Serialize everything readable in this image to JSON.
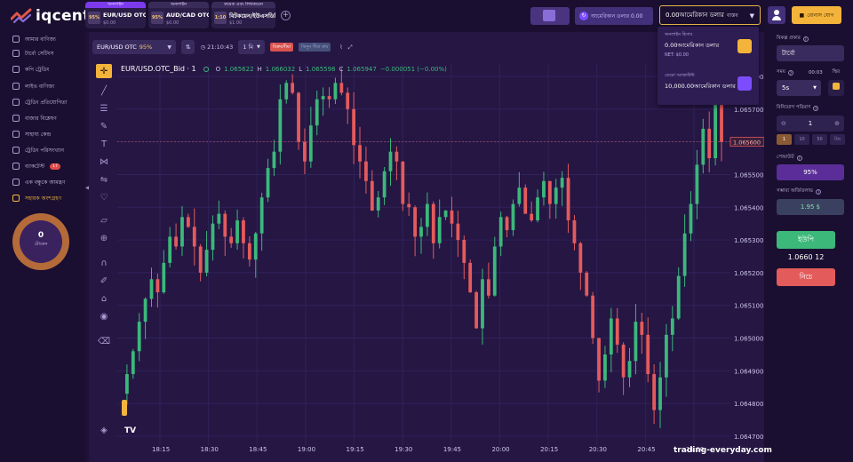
{
  "brand": {
    "name": "iqcent"
  },
  "asset_tabs": [
    {
      "header": "অনলাইন",
      "pct": "95%",
      "name": "EUR/USD OTC",
      "balance": "$0.00",
      "active": true
    },
    {
      "header": "অনলাইন",
      "pct": "95%",
      "name": "AUD/CAD OTC",
      "balance": "$0.00",
      "active": false
    },
    {
      "header": "কয়েক এবং লিথকয়েন",
      "pct": "1:10",
      "name": "বিটকয়েন/ইউএসডিটি",
      "balance": "$1.00",
      "active": false
    }
  ],
  "header": {
    "demo_label": "আমেরিকান ডলার 0.00",
    "balance_select": "0.00আমেরিকান ডলার",
    "balance_select_suffix": "বাস্তব",
    "bonus_label": "বোনাস যোগ"
  },
  "balance_dropdown": {
    "live_label": "অনলাইন হিসাব",
    "live_amount": "0.00আমেরিকান ডলার",
    "live_net": "NET: $0.00",
    "demo_label": "ডেমো অ্যাকাউন্ট",
    "demo_amount": "10,000.00আমেরিকান ডলার",
    "colors": {
      "live_icon": "#f4b43c",
      "demo_icon": "#7c4dff"
    }
  },
  "sidebar": {
    "items": [
      {
        "label": "আমার বাণিজ্য",
        "icon": "briefcase-icon"
      },
      {
        "label": "টার্বো সেটিংস",
        "icon": "rocket-icon"
      },
      {
        "label": "কপি ট্রেডিং",
        "icon": "copy-icon"
      },
      {
        "label": "লাইভ বাণিজ্য",
        "icon": "pulse-icon"
      },
      {
        "label": "ট্রেডিং প্রতিযোগিতা",
        "icon": "trophy-icon"
      },
      {
        "label": "বাজার বিশ্লেষণ",
        "icon": "chart-icon"
      },
      {
        "label": "সাহায্য কেন্দ্র",
        "icon": "help-icon"
      },
      {
        "label": "ট্রেডিং পরিসংখ্যান",
        "icon": "stats-icon"
      },
      {
        "label": "ব্যাকটেস্ট",
        "icon": "history-icon",
        "badge": "17"
      },
      {
        "label": "এক বন্ধুকে আমন্ত্রণ",
        "icon": "invite-icon"
      },
      {
        "label": "সহায়ক অংশগ্রহণ",
        "icon": "partner-icon",
        "highlight": true
      }
    ],
    "ring_value": "0",
    "ring_label": "টোকেন"
  },
  "chart_toolbar": {
    "asset": "EUR/USD OTC",
    "asset_pct": "95%",
    "time": "21:10:43",
    "timeframe": "1 মি",
    "pill_red": "বিক্রয়সীমা",
    "pill_dim": "কিনুন সীমা ক্রয়"
  },
  "ohlc": {
    "symbol": "EUR/USD.OTC_Bid · 1",
    "o_label": "O",
    "o": "1.065622",
    "h_label": "H",
    "h": "1.066032",
    "l_label": "L",
    "l": "1.065598",
    "c_label": "C",
    "c": "1.065947",
    "change": "−0.000051 (−0.00%)"
  },
  "chart_data": {
    "type": "candlestick",
    "x_ticks": [
      "18:15",
      "18:30",
      "18:45",
      "19:00",
      "19:15",
      "19:30",
      "19:45",
      "20:00",
      "20:15",
      "20:30",
      "20:45",
      "21:00"
    ],
    "y_ticks": [
      "1.065800",
      "1.065700",
      "1.065600",
      "1.065500",
      "1.065400",
      "1.065300",
      "1.065200",
      "1.065100",
      "1.065000",
      "1.064900",
      "1.064800",
      "1.064700"
    ],
    "ylim": [
      1.0647,
      1.0658
    ],
    "current_price_tag": "1.065600",
    "colors": {
      "up": "#3cb87a",
      "down": "#e45b5b",
      "grid": "#30225a",
      "bg": "#251644"
    },
    "close_path": [
      1.06483,
      1.06489,
      1.06496,
      1.06505,
      1.06512,
      1.06518,
      1.06514,
      1.06523,
      1.06531,
      1.06528,
      1.06537,
      1.06534,
      1.06528,
      1.0652,
      1.06527,
      1.06535,
      1.06538,
      1.06531,
      1.06529,
      1.06536,
      1.06529,
      1.06524,
      1.06532,
      1.06543,
      1.06552,
      1.06557,
      1.06573,
      1.06578,
      1.06575,
      1.0656,
      1.06554,
      1.06565,
      1.06573,
      1.06574,
      1.06573,
      1.06578,
      1.06575,
      1.0657,
      1.06559,
      1.06554,
      1.06548,
      1.06539,
      1.06543,
      1.06551,
      1.06557,
      1.06554,
      1.06541,
      1.0654,
      1.06531,
      1.06534,
      1.06541,
      1.06529,
      1.06537,
      1.06539,
      1.06535,
      1.0653,
      1.06523,
      1.06514,
      1.06503,
      1.06518,
      1.06513,
      1.06528,
      1.06537,
      1.06533,
      1.06541,
      1.06546,
      1.06538,
      1.06536,
      1.06543,
      1.06548,
      1.06541,
      1.06546,
      1.06549,
      1.06536,
      1.06529,
      1.0652,
      1.06513,
      1.065,
      1.06487,
      1.06495,
      1.06506,
      1.06498,
      1.06488,
      1.06493,
      1.06505,
      1.06501,
      1.06489,
      1.06478,
      1.06488,
      1.06501,
      1.06506,
      1.06519,
      1.06532,
      1.06541,
      1.06553,
      1.06564,
      1.06555,
      1.06576,
      1.0656
    ]
  },
  "right_panel": {
    "trade_type_label": "বিকল্প প্রকার",
    "trade_type": "টার্বো",
    "time_label": "সময়",
    "time_clock": "00:03",
    "time_mode": "স্থির",
    "time_value": "5s",
    "amount_label": "বিনিয়োগ পরিমাণ",
    "amount_value": "1",
    "multipliers": [
      "1",
      "10",
      "50",
      "প্রিং"
    ],
    "payout_label": "পেআউট",
    "payout_value": "95%",
    "profit_label": "সম্ভাব্য অর্জিতলাভ",
    "profit_value": "1.95 $",
    "up_label": "ইউপি",
    "current_price": "1.0660 12",
    "down_label": "নিচে"
  },
  "watermark": "trading-everyday.com"
}
